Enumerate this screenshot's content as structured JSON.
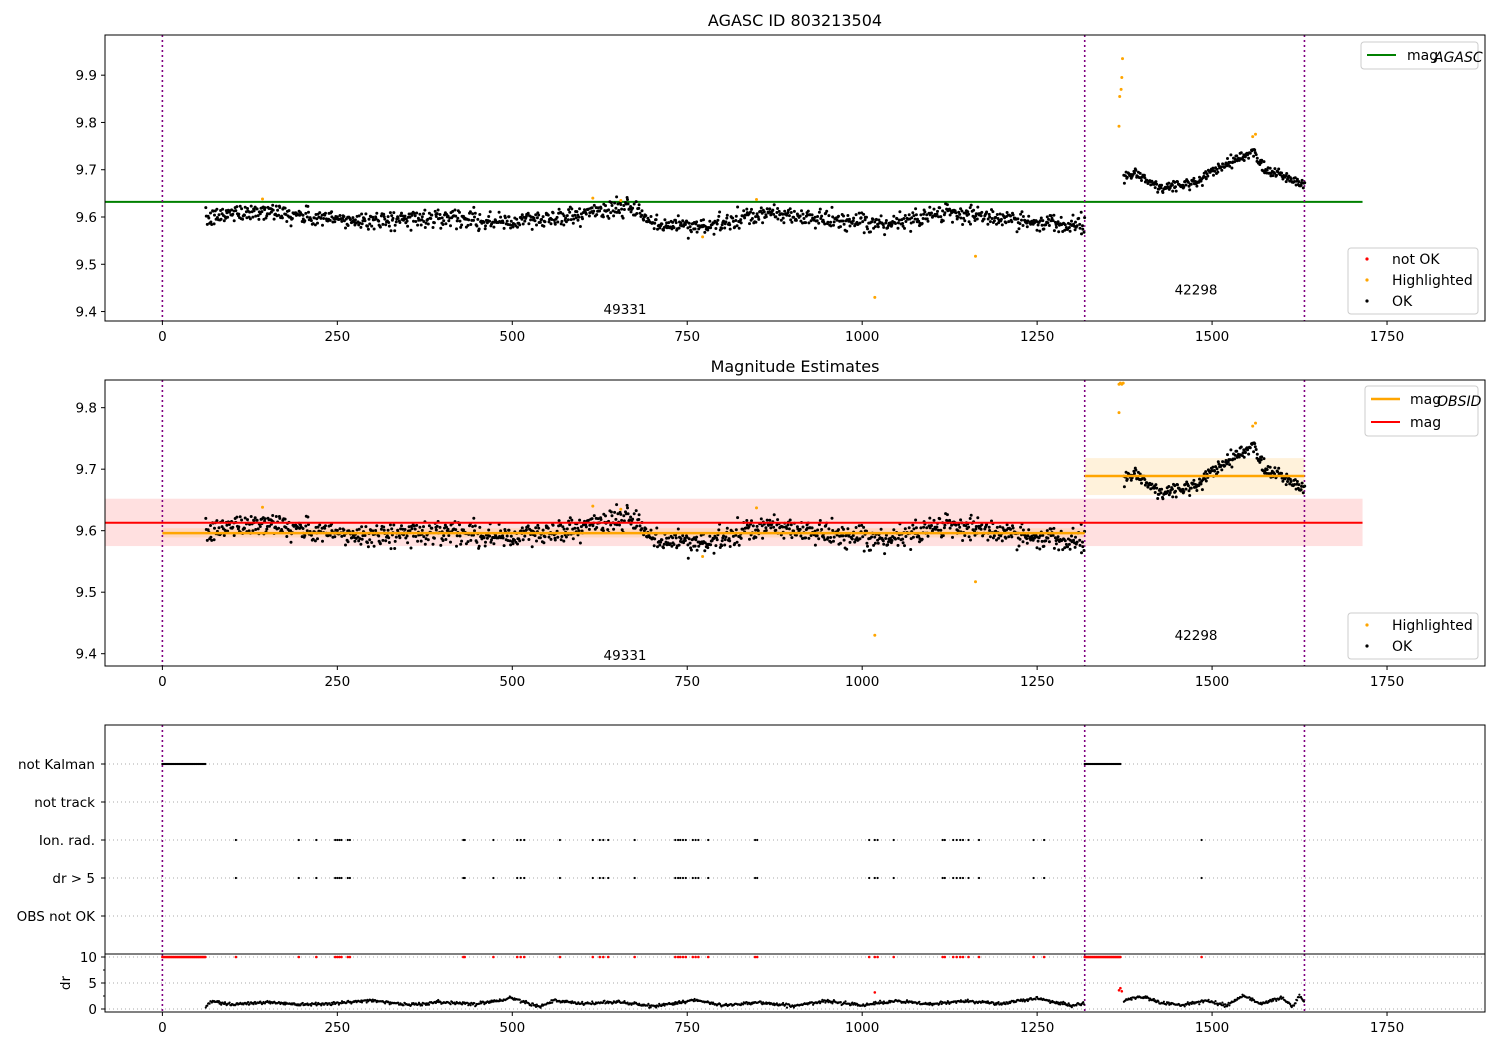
{
  "chart_data": [
    {
      "type": "scatter",
      "title": "AGASC ID 803213504",
      "xlim": [
        -82,
        1890
      ],
      "ylim": [
        9.38,
        9.985
      ],
      "xticks": [
        "0",
        "250",
        "500",
        "750",
        "1000",
        "1250",
        "1500",
        "1750"
      ],
      "yticks": [
        "9.4",
        "9.5",
        "9.6",
        "9.7",
        "9.8",
        "9.9"
      ],
      "obsid_boundaries": [
        0,
        1318,
        1632
      ],
      "annotations": [
        {
          "text": "49331",
          "x": 659,
          "y": 9.405
        },
        {
          "text": "42298",
          "x": 1475,
          "y": 9.447
        }
      ],
      "reference_lines": [
        {
          "name": "mag_AGASC",
          "label_main": "mag",
          "label_sub": "AGASC",
          "value": 9.632,
          "x": [
            -82,
            1715
          ],
          "color": "#008000"
        }
      ],
      "series": [
        {
          "name": "not OK",
          "color": "#ff0000"
        },
        {
          "name": "Highlighted",
          "color": "#ffa500",
          "points": [
            [
              143,
              9.638
            ],
            [
              615,
              9.64
            ],
            [
              655,
              9.635
            ],
            [
              772,
              9.558
            ],
            [
              849,
              9.637
            ],
            [
              1018,
              9.43
            ],
            [
              1162,
              9.517
            ],
            [
              1367,
              9.792
            ],
            [
              1368,
              9.855
            ],
            [
              1370,
              9.87
            ],
            [
              1371,
              9.895
            ],
            [
              1372,
              9.935
            ],
            [
              1558,
              9.77
            ],
            [
              1562,
              9.775
            ]
          ]
        },
        {
          "name": "OK",
          "color": "#000000",
          "segments": [
            {
              "x": [
                62,
                1318
              ],
              "mean": 9.596,
              "spread": 0.017,
              "trend": [
                [
                  62,
                  9.594
                ],
                [
                  100,
                  9.609
                ],
                [
                  150,
                  9.614
                ],
                [
                  200,
                  9.601
                ],
                [
                  260,
                  9.593
                ],
                [
                  330,
                  9.594
                ],
                [
                  420,
                  9.601
                ],
                [
                  480,
                  9.588
                ],
                [
                  550,
                  9.596
                ],
                [
                  620,
                  9.612
                ],
                [
                  670,
                  9.621
                ],
                [
                  700,
                  9.585
                ],
                [
                  780,
                  9.58
                ],
                [
                  870,
                  9.608
                ],
                [
                  940,
                  9.596
                ],
                [
                  1020,
                  9.582
                ],
                [
                  1080,
                  9.598
                ],
                [
                  1120,
                  9.613
                ],
                [
                  1180,
                  9.598
                ],
                [
                  1240,
                  9.59
                ],
                [
                  1318,
                  9.587
                ]
              ]
            },
            {
              "x": [
                1374,
                1632
              ],
              "mean": 9.689,
              "spread": 0.012,
              "trend": [
                [
                  1374,
                  9.68
                ],
                [
                  1390,
                  9.695
                ],
                [
                  1420,
                  9.664
                ],
                [
                  1460,
                  9.668
                ],
                [
                  1480,
                  9.673
                ],
                [
                  1500,
                  9.695
                ],
                [
                  1520,
                  9.714
                ],
                [
                  1545,
                  9.727
                ],
                [
                  1560,
                  9.74
                ],
                [
                  1575,
                  9.702
                ],
                [
                  1600,
                  9.69
                ],
                [
                  1620,
                  9.675
                ],
                [
                  1632,
                  9.668
                ]
              ]
            }
          ]
        }
      ],
      "legends": {
        "upper_right": [
          "mag_AGASC"
        ],
        "lower_right": [
          "not OK",
          "Highlighted",
          "OK"
        ]
      }
    },
    {
      "type": "scatter",
      "title": "Magnitude Estimates",
      "xlim": [
        -82,
        1890
      ],
      "ylim": [
        9.38,
        9.845
      ],
      "xticks": [
        "0",
        "250",
        "500",
        "750",
        "1000",
        "1250",
        "1500",
        "1750"
      ],
      "yticks": [
        "9.4",
        "9.5",
        "9.6",
        "9.7",
        "9.8"
      ],
      "obsid_boundaries": [
        0,
        1318,
        1632
      ],
      "annotations": [
        {
          "text": "49331",
          "x": 659,
          "y": 9.398
        },
        {
          "text": "42298",
          "x": 1475,
          "y": 9.43
        }
      ],
      "reference_lines": [
        {
          "name": "mag_OBSID",
          "label_main": "mag",
          "label_sub": "OBSID",
          "value": 9.596,
          "x": [
            0,
            1318
          ],
          "color": "#ffa500",
          "band": [
            9.589,
            9.604
          ]
        },
        {
          "name": "mag_OBSID_2",
          "value": 9.689,
          "x": [
            1318,
            1632
          ],
          "color": "#ffa500",
          "band": [
            9.658,
            9.718
          ]
        },
        {
          "name": "mag",
          "label_main": "mag",
          "value": 9.613,
          "x": [
            -82,
            1715
          ],
          "color": "#ff0000",
          "band": [
            9.575,
            9.652
          ]
        }
      ],
      "series": [
        {
          "name": "Highlighted",
          "color": "#ffa500",
          "points": [
            [
              143,
              9.638
            ],
            [
              615,
              9.64
            ],
            [
              655,
              9.635
            ],
            [
              772,
              9.558
            ],
            [
              849,
              9.637
            ],
            [
              1018,
              9.43
            ],
            [
              1162,
              9.517
            ],
            [
              1367,
              9.792
            ],
            [
              1367,
              9.838
            ],
            [
              1369,
              9.84
            ],
            [
              1371,
              9.838
            ],
            [
              1373,
              9.84
            ],
            [
              1558,
              9.77
            ],
            [
              1562,
              9.775
            ]
          ]
        },
        {
          "name": "OK",
          "color": "#000000",
          "same_as": "panel 1 OK"
        }
      ],
      "legends": {
        "upper_right": [
          "mag_OBSID",
          "mag"
        ],
        "lower_right": [
          "Highlighted",
          "OK"
        ]
      }
    },
    {
      "type": "scatter",
      "title": "",
      "xlim": [
        -82,
        1890
      ],
      "categories": [
        "not Kalman",
        "not track",
        "Ion. rad.",
        "dr > 5",
        "OBS not OK"
      ],
      "xticks": [
        "0",
        "250",
        "500",
        "750",
        "1000",
        "1250",
        "1500",
        "1750"
      ],
      "obsid_boundaries": [
        0,
        1318,
        1632
      ],
      "flags": {
        "not Kalman": [
          [
            0,
            62
          ],
          [
            1318,
            1370
          ]
        ],
        "not track": [],
        "Ion. rad.": [
          105,
          195,
          220,
          247,
          250,
          253,
          256,
          265,
          268,
          430,
          432,
          473,
          507,
          512,
          517,
          568,
          615,
          625,
          630,
          637,
          675,
          733,
          737,
          740,
          744,
          748,
          758,
          762,
          766,
          780,
          847,
          850,
          1010,
          1018,
          1022,
          1045,
          1115,
          1118,
          1130,
          1135,
          1140,
          1144,
          1152,
          1167,
          1245,
          1260,
          1485
        ],
        "dr > 5": [
          105,
          195,
          220,
          247,
          250,
          253,
          256,
          265,
          268,
          430,
          432,
          473,
          507,
          512,
          517,
          568,
          615,
          625,
          630,
          637,
          675,
          733,
          737,
          740,
          744,
          748,
          758,
          762,
          766,
          780,
          847,
          850,
          1010,
          1018,
          1022,
          1045,
          1115,
          1118,
          1130,
          1135,
          1140,
          1144,
          1152,
          1167,
          1245,
          1260,
          1485
        ],
        "OBS not OK": []
      }
    },
    {
      "type": "scatter",
      "title": "",
      "ylabel": "dr",
      "xlim": [
        -82,
        1890
      ],
      "ylim": [
        -0.5,
        10.5
      ],
      "xticks": [
        "0",
        "250",
        "500",
        "750",
        "1000",
        "1250",
        "1500",
        "1750"
      ],
      "yticks": [
        "0",
        "5",
        "10"
      ],
      "obsid_boundaries": [
        0,
        1318,
        1632
      ],
      "series": [
        {
          "name": "dr clipped",
          "color": "#ff0000",
          "value": 10,
          "x_ranges": [
            [
              0,
              62
            ],
            [
              1318,
              1370
            ]
          ],
          "x_points": [
            105,
            195,
            220,
            247,
            250,
            253,
            256,
            265,
            268,
            430,
            432,
            473,
            507,
            512,
            517,
            568,
            615,
            625,
            630,
            637,
            675,
            733,
            737,
            740,
            744,
            748,
            758,
            762,
            766,
            780,
            847,
            850,
            1010,
            1018,
            1022,
            1045,
            1115,
            1118,
            1130,
            1135,
            1140,
            1144,
            1152,
            1167,
            1245,
            1260,
            1485
          ]
        },
        {
          "name": "dr bad",
          "color": "#ff0000",
          "points": [
            [
              1018,
              3.2
            ],
            [
              1367,
              3.6
            ],
            [
              1369,
              4.0
            ],
            [
              1371,
              3.4
            ]
          ]
        },
        {
          "name": "dr",
          "color": "#000000",
          "segments": [
            {
              "x": [
                62,
                1318
              ],
              "trend": [
                [
                  62,
                  0.3
                ],
                [
                  70,
                  1.5
                ],
                [
                  100,
                  0.9
                ],
                [
                  150,
                  1.3
                ],
                [
                  200,
                  0.9
                ],
                [
                  260,
                  1.2
                ],
                [
                  300,
                  1.7
                ],
                [
                  350,
                  0.8
                ],
                [
                  400,
                  1.3
                ],
                [
                  450,
                  1.0
                ],
                [
                  500,
                  2.1
                ],
                [
                  540,
                  0.5
                ],
                [
                  560,
                  1.6
                ],
                [
                  600,
                  1.0
                ],
                [
                  650,
                  1.4
                ],
                [
                  700,
                  0.5
                ],
                [
                  760,
                  1.7
                ],
                [
                  800,
                  0.7
                ],
                [
                  850,
                  1.3
                ],
                [
                  900,
                  0.6
                ],
                [
                  950,
                  1.5
                ],
                [
                  1000,
                  0.8
                ],
                [
                  1050,
                  1.5
                ],
                [
                  1100,
                  0.9
                ],
                [
                  1150,
                  1.6
                ],
                [
                  1200,
                  1.0
                ],
                [
                  1250,
                  2.1
                ],
                [
                  1300,
                  0.6
                ],
                [
                  1318,
                  1.2
                ]
              ]
            },
            {
              "x": [
                1374,
                1632
              ],
              "trend": [
                [
                  1374,
                  1.6
                ],
                [
                  1400,
                  2.4
                ],
                [
                  1430,
                  1.1
                ],
                [
                  1460,
                  0.8
                ],
                [
                  1490,
                  1.6
                ],
                [
                  1520,
                  0.7
                ],
                [
                  1545,
                  2.6
                ],
                [
                  1570,
                  1.0
                ],
                [
                  1600,
                  2.2
                ],
                [
                  1615,
                  0.4
                ],
                [
                  1625,
                  2.6
                ],
                [
                  1632,
                  1.1
                ]
              ]
            }
          ]
        }
      ]
    }
  ]
}
